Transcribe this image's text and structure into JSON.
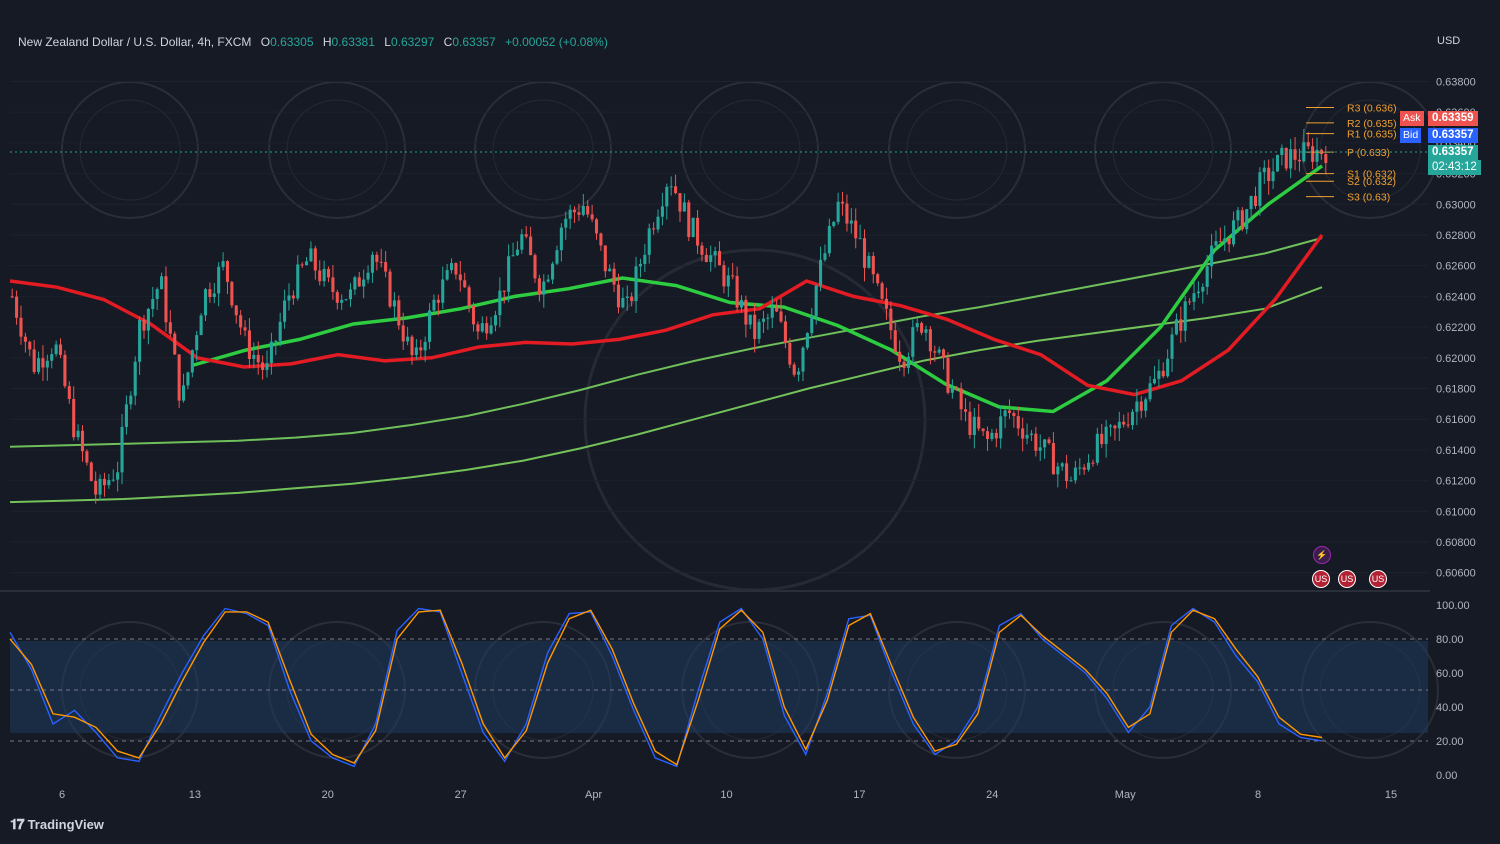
{
  "header": {
    "symbol": "New Zealand Dollar / U.S. Dollar, 4h, FXCM",
    "o_label": "O",
    "o_value": "0.63305",
    "h_label": "H",
    "h_value": "0.63381",
    "l_label": "L",
    "l_value": "0.63297",
    "c_label": "C",
    "c_value": "0.63357",
    "change": "+0.00052 (+0.08%)"
  },
  "currency": "USD",
  "brand": "TradingView",
  "quote": {
    "ask_label": "Ask",
    "ask_value": "0.63359",
    "bid_label": "Bid",
    "bid_value": "0.63357",
    "last_value": "0.63357",
    "countdown": "02:43:12"
  },
  "colors": {
    "background": "#161a25",
    "up": "#26a69a",
    "down": "#ef5350",
    "ema_red": "#e31b23",
    "ema_green": "#2ecc40",
    "stoch_k": "#2962ff",
    "stoch_d": "#ff9800",
    "pivot": "#f0a030",
    "ask": "#ef5350",
    "bid": "#2962ff"
  },
  "events": [
    {
      "icon": "lightning-icon",
      "symbol": "⚡"
    },
    {
      "icon": "us-flag-icon",
      "symbol": "US"
    },
    {
      "icon": "us-flag-icon",
      "symbol": "US"
    },
    {
      "icon": "us-flag-icon",
      "symbol": "US"
    }
  ],
  "chart_data": [
    {
      "type": "candlestick",
      "pane": "price",
      "ylim": [
        0.6052,
        0.6407
      ],
      "y_ticks": [
        "0.63800",
        "0.63600",
        "0.63400",
        "0.63200",
        "0.63000",
        "0.62800",
        "0.62600",
        "0.62400",
        "0.62200",
        "0.62000",
        "0.61800",
        "0.61600",
        "0.61400",
        "0.61200",
        "0.61000",
        "0.60800",
        "0.60600"
      ],
      "x_ticks": [
        "6",
        "13",
        "20",
        "27",
        "Apr",
        "10",
        "17",
        "24",
        "May",
        "8",
        "15"
      ],
      "close_path": [
        0.624,
        0.6195,
        0.621,
        0.615,
        0.611,
        0.613,
        0.622,
        0.625,
        0.617,
        0.624,
        0.626,
        0.621,
        0.619,
        0.624,
        0.6265,
        0.6245,
        0.624,
        0.627,
        0.6235,
        0.6195,
        0.624,
        0.626,
        0.6215,
        0.624,
        0.628,
        0.6245,
        0.629,
        0.63,
        0.626,
        0.623,
        0.628,
        0.632,
        0.6285,
        0.6265,
        0.6245,
        0.6215,
        0.623,
        0.619,
        0.625,
        0.63,
        0.6275,
        0.6235,
        0.62,
        0.6225,
        0.619,
        0.616,
        0.6145,
        0.6165,
        0.615,
        0.6135,
        0.612,
        0.614,
        0.615,
        0.617,
        0.6185,
        0.622,
        0.625,
        0.6275,
        0.629,
        0.6315,
        0.633,
        0.6333,
        0.63357
      ],
      "pivots": [
        {
          "label": "R3 (0.636)",
          "value": 0.6363
        },
        {
          "label": "R2 (0.635)",
          "value": 0.6353
        },
        {
          "label": "R1 (0.635)",
          "value": 0.6346
        },
        {
          "label": "P (0.633)",
          "value": 0.6334
        },
        {
          "label": "S1 (0.632)",
          "value": 0.632
        },
        {
          "label": "S2 (0.632)",
          "value": 0.6315
        },
        {
          "label": "S3 (0.63)",
          "value": 0.6305
        }
      ],
      "moving_averages": [
        {
          "color": "red",
          "points": [
            0.625,
            0.6246,
            0.6238,
            0.6222,
            0.62,
            0.6194,
            0.6196,
            0.6202,
            0.6198,
            0.62,
            0.6207,
            0.621,
            0.6209,
            0.6212,
            0.6218,
            0.6228,
            0.6232,
            0.625,
            0.624,
            0.6234,
            0.6225,
            0.6212,
            0.6202,
            0.6182,
            0.6176,
            0.6185,
            0.6205,
            0.6238,
            0.628
          ]
        },
        {
          "color": "green",
          "points": [
            0.6142,
            0.6143,
            0.6144,
            0.6145,
            0.6146,
            0.6148,
            0.6151,
            0.6156,
            0.6162,
            0.617,
            0.6179,
            0.6189,
            0.6198,
            0.6206,
            0.6213,
            0.622,
            0.6227,
            0.6233,
            0.624,
            0.6247,
            0.6254,
            0.6261,
            0.6268,
            0.6278
          ]
        },
        {
          "color": "green",
          "points": [
            0.6106,
            0.6107,
            0.6108,
            0.611,
            0.6112,
            0.6115,
            0.6118,
            0.6122,
            0.6127,
            0.6133,
            0.6141,
            0.615,
            0.616,
            0.617,
            0.618,
            0.6189,
            0.6198,
            0.6205,
            0.6211,
            0.6216,
            0.6221,
            0.6226,
            0.6232,
            0.6246
          ]
        },
        {
          "color": "green",
          "points": [
            0.6195,
            0.6205,
            0.6212,
            0.6222,
            0.6226,
            0.6232,
            0.624,
            0.6245,
            0.6252,
            0.6247,
            0.6236,
            0.6233,
            0.6221,
            0.6205,
            0.6183,
            0.6168,
            0.6165,
            0.6185,
            0.622,
            0.627,
            0.63,
            0.6325
          ]
        }
      ]
    },
    {
      "type": "line",
      "pane": "stochastic",
      "ylim": [
        -3,
        103
      ],
      "y_ticks": [
        "100.00",
        "80.00",
        "60.00",
        "40.00",
        "20.00",
        "0.00"
      ],
      "bands": [
        20,
        50,
        80
      ],
      "series": [
        {
          "color": "blue",
          "values": [
            84,
            62,
            30,
            38,
            25,
            10,
            8,
            35,
            60,
            82,
            98,
            95,
            88,
            50,
            20,
            10,
            5,
            30,
            85,
            98,
            96,
            60,
            25,
            8,
            30,
            72,
            95,
            96,
            70,
            38,
            10,
            5,
            50,
            90,
            98,
            80,
            35,
            12,
            48,
            92,
            94,
            60,
            30,
            12,
            20,
            40,
            88,
            95,
            80,
            70,
            60,
            45,
            25,
            40,
            88,
            98,
            90,
            70,
            55,
            30,
            22,
            20
          ]
        },
        {
          "color": "orange",
          "values": [
            80,
            65,
            36,
            34,
            28,
            14,
            10,
            30,
            55,
            78,
            96,
            96,
            90,
            56,
            24,
            12,
            7,
            26,
            80,
            96,
            97,
            66,
            30,
            10,
            26,
            66,
            92,
            97,
            74,
            42,
            14,
            6,
            44,
            86,
            97,
            84,
            40,
            15,
            44,
            88,
            95,
            64,
            34,
            14,
            18,
            36,
            84,
            94,
            82,
            72,
            62,
            48,
            28,
            36,
            84,
            97,
            92,
            74,
            58,
            34,
            24,
            22
          ]
        }
      ]
    }
  ]
}
